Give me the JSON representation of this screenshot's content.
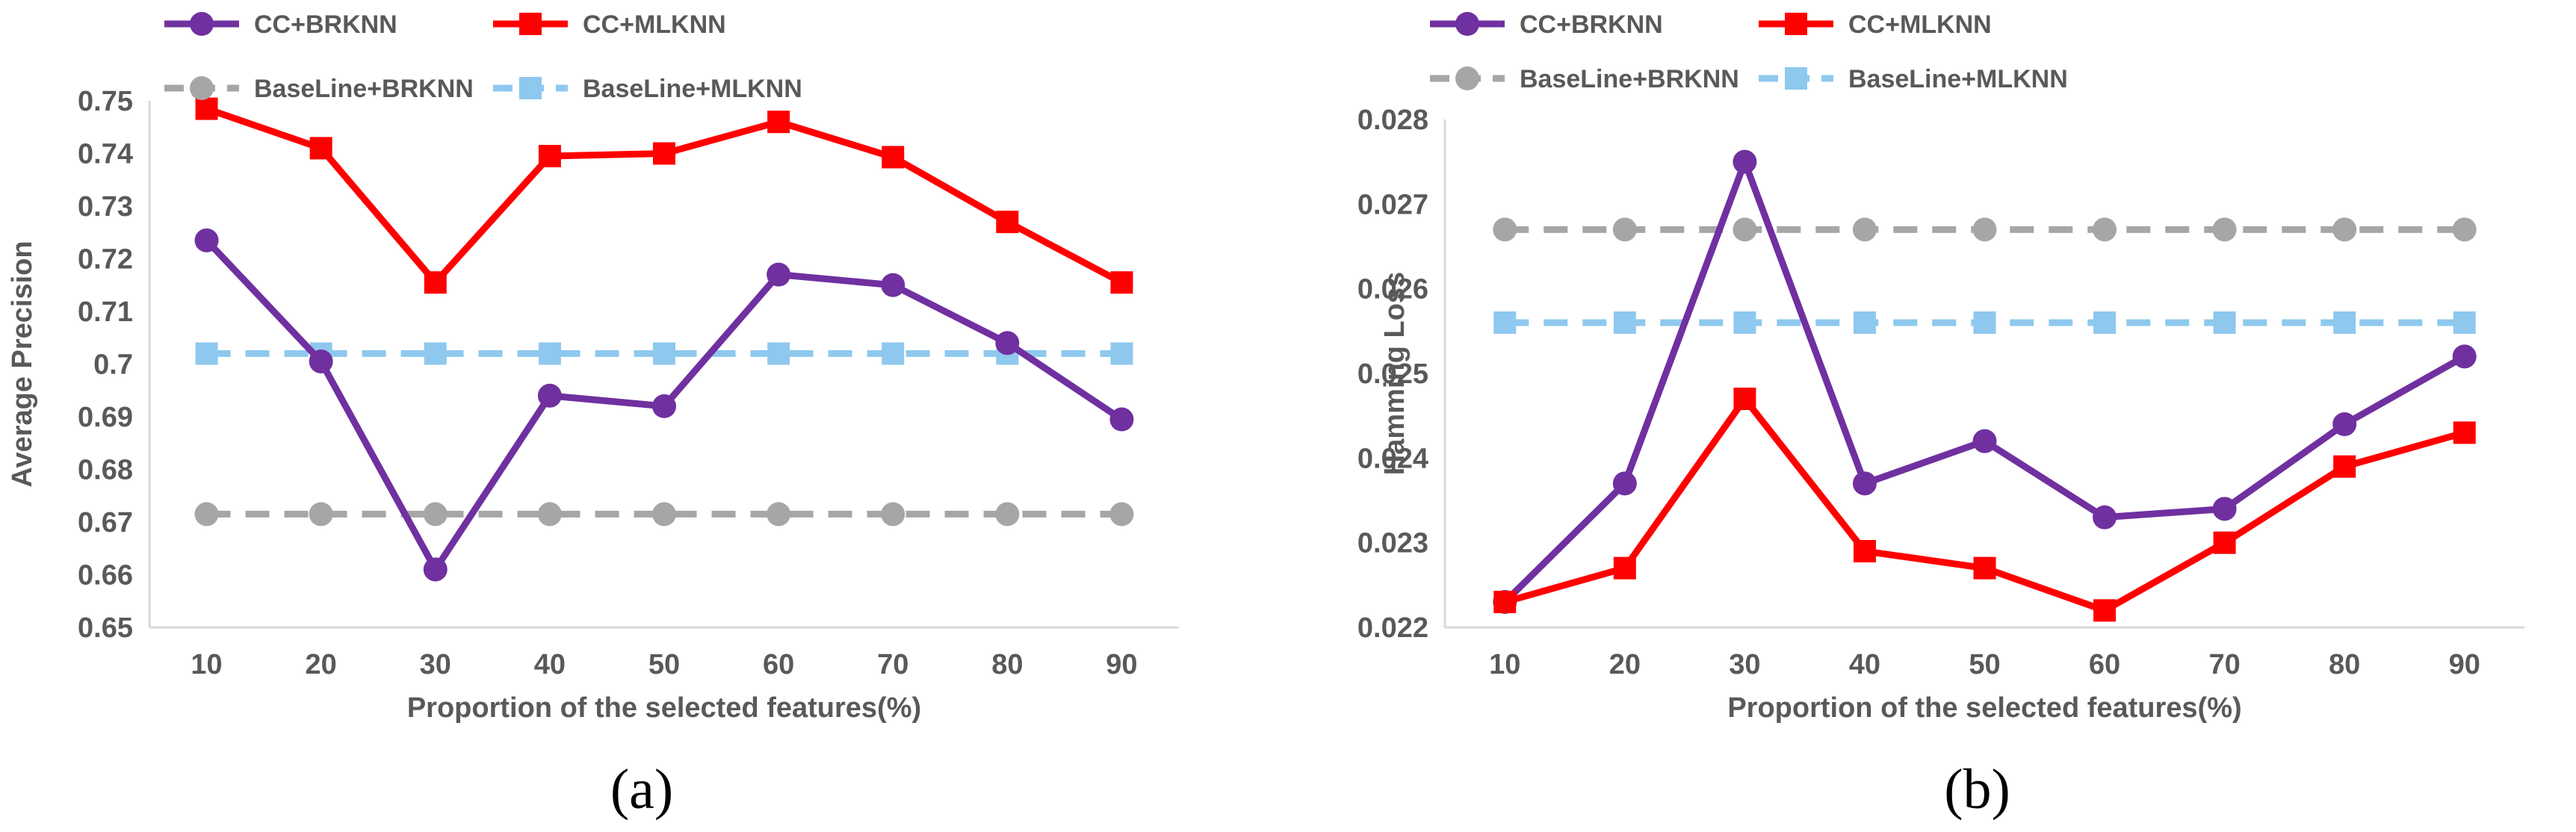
{
  "chart_data": [
    {
      "type": "line",
      "panel_label": "(a)",
      "title": "",
      "xlabel": "Proportion of the selected features(%)",
      "ylabel": "Average Precision",
      "categories": [
        "10",
        "20",
        "30",
        "40",
        "50",
        "60",
        "70",
        "80",
        "90"
      ],
      "ylim": [
        0.65,
        0.75
      ],
      "yticks": [
        0.65,
        0.66,
        0.67,
        0.68,
        0.69,
        0.7,
        0.71,
        0.72,
        0.73,
        0.74,
        0.75
      ],
      "ytick_labels": [
        "0.65",
        "0.66",
        "0.67",
        "0.68",
        "0.69",
        "0.7",
        "0.71",
        "0.72",
        "0.73",
        "0.74",
        "0.75"
      ],
      "grid": false,
      "legend_position": "top",
      "series": [
        {
          "name": "CC+BRKNN",
          "color": "#7030A0",
          "style": "solid",
          "marker": "circle",
          "values": [
            0.7235,
            0.7005,
            0.661,
            0.694,
            0.692,
            0.717,
            0.715,
            0.704,
            0.6895
          ]
        },
        {
          "name": "CC+MLKNN",
          "color": "#FF0000",
          "style": "solid",
          "marker": "square",
          "values": [
            0.7485,
            0.741,
            0.7155,
            0.7395,
            0.74,
            0.746,
            0.7393,
            0.727,
            0.7155
          ]
        },
        {
          "name": "BaseLine+BRKNN",
          "color": "#A6A6A6",
          "style": "dashed",
          "marker": "circle",
          "values": [
            0.6715,
            0.6715,
            0.6715,
            0.6715,
            0.6715,
            0.6715,
            0.6715,
            0.6715,
            0.6715
          ]
        },
        {
          "name": "BaseLine+MLKNN",
          "color": "#8EC8EE",
          "style": "dashed",
          "marker": "square",
          "values": [
            0.702,
            0.702,
            0.702,
            0.702,
            0.702,
            0.702,
            0.702,
            0.702,
            0.702
          ]
        }
      ]
    },
    {
      "type": "line",
      "panel_label": "(b)",
      "title": "",
      "xlabel": "Proportion of the selected features(%)",
      "ylabel": "Hamming Loss",
      "categories": [
        "10",
        "20",
        "30",
        "40",
        "50",
        "60",
        "70",
        "80",
        "90"
      ],
      "ylim": [
        0.022,
        0.028
      ],
      "yticks": [
        0.022,
        0.023,
        0.024,
        0.025,
        0.026,
        0.027,
        0.028
      ],
      "ytick_labels": [
        "0.022",
        "0.023",
        "0.024",
        "0.025",
        "0.026",
        "0.027",
        "0.028"
      ],
      "grid": false,
      "legend_position": "top",
      "series": [
        {
          "name": "CC+BRKNN",
          "color": "#7030A0",
          "style": "solid",
          "marker": "circle",
          "values": [
            0.0223,
            0.0237,
            0.0275,
            0.0237,
            0.0242,
            0.0233,
            0.0234,
            0.0244,
            0.0252
          ]
        },
        {
          "name": "CC+MLKNN",
          "color": "#FF0000",
          "style": "solid",
          "marker": "square",
          "values": [
            0.0223,
            0.0227,
            0.0247,
            0.0229,
            0.0227,
            0.0222,
            0.023,
            0.0239,
            0.0243
          ]
        },
        {
          "name": "BaseLine+BRKNN",
          "color": "#A6A6A6",
          "style": "dashed",
          "marker": "circle",
          "values": [
            0.0267,
            0.0267,
            0.0267,
            0.0267,
            0.0267,
            0.0267,
            0.0267,
            0.0267,
            0.0267
          ]
        },
        {
          "name": "BaseLine+MLKNN",
          "color": "#8EC8EE",
          "style": "dashed",
          "marker": "square",
          "values": [
            0.0256,
            0.0256,
            0.0256,
            0.0256,
            0.0256,
            0.0256,
            0.0256,
            0.0256,
            0.0256
          ]
        }
      ]
    }
  ]
}
